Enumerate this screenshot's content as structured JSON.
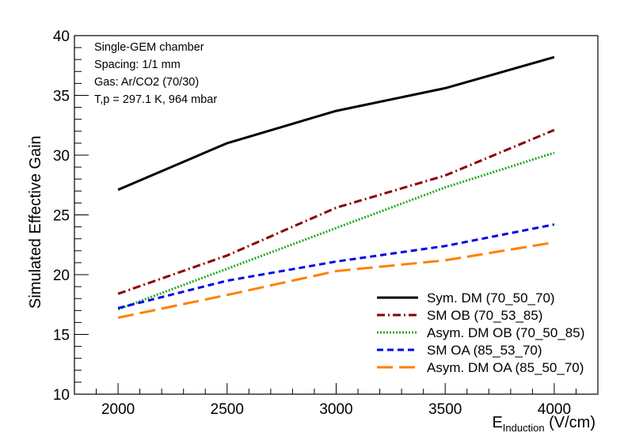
{
  "chart_data": {
    "type": "line",
    "title": "",
    "xlabel_main": "E",
    "xlabel_sub": "Induction",
    "xlabel_unit": " (V/cm)",
    "ylabel": "Simulated Effective Gain",
    "xlim": [
      1800,
      4200
    ],
    "ylim": [
      10,
      40
    ],
    "xticks": [
      2000,
      2500,
      3000,
      3500,
      4000
    ],
    "yticks": [
      10,
      15,
      20,
      25,
      30,
      35,
      40
    ],
    "annotations": [
      "Single-GEM chamber",
      "Spacing: 1/1 mm",
      "Gas: Ar/CO2 (70/30)",
      "T,p = 297.1 K, 964 mbar"
    ],
    "x": [
      2000,
      2500,
      3000,
      3500,
      4000
    ],
    "series": [
      {
        "name": "Sym. DM (70_50_70)",
        "color": "#000000",
        "dash": "solid",
        "values": [
          27.1,
          31.0,
          33.7,
          35.6,
          38.2
        ]
      },
      {
        "name": "SM OB (70_53_85)",
        "color": "#8b0000",
        "dash": "dashdot",
        "values": [
          18.4,
          21.6,
          25.6,
          28.3,
          32.1
        ]
      },
      {
        "name": "Asym. DM OB (70_50_85)",
        "color": "#22aa22",
        "dash": "dotted",
        "values": [
          17.1,
          20.5,
          23.9,
          27.3,
          30.2
        ]
      },
      {
        "name": "SM OA (85_53_70)",
        "color": "#0000ee",
        "dash": "dashed",
        "values": [
          17.2,
          19.5,
          21.1,
          22.4,
          24.2
        ]
      },
      {
        "name": "Asym. DM OA (85_50_70)",
        "color": "#ff7f00",
        "dash": "longdash",
        "values": [
          16.4,
          18.3,
          20.3,
          21.2,
          22.7
        ]
      }
    ],
    "legend_position": "bottom-right",
    "grid": false
  }
}
